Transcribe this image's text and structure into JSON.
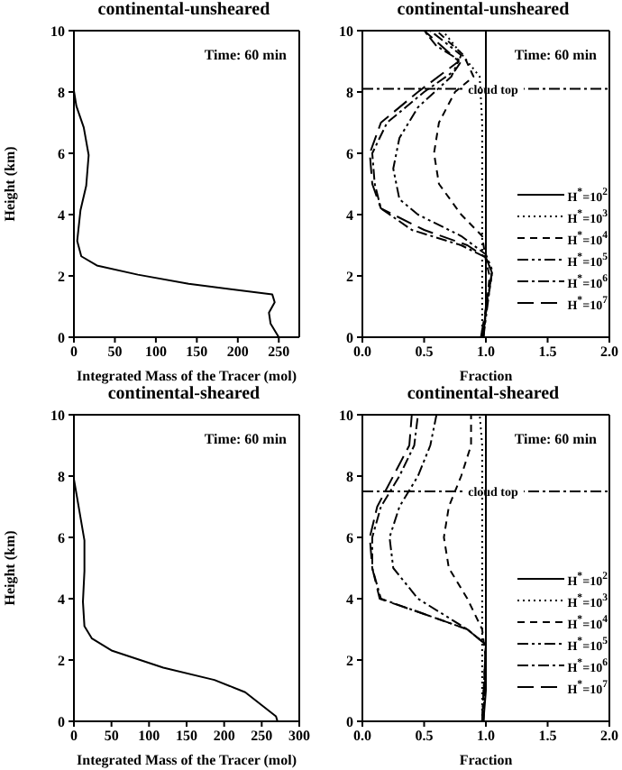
{
  "chart_data": [
    {
      "type": "line",
      "title": "continental-unsheared",
      "xlabel": "Integrated Mass of the Tracer (mol)",
      "ylabel": "Height (km)",
      "annotations": [
        "Time: 60 min"
      ],
      "xlim": [
        0,
        275
      ],
      "xticks": [
        0,
        50,
        100,
        150,
        200,
        250
      ],
      "ylim": [
        0,
        10
      ],
      "yticks": [
        0,
        2,
        4,
        6,
        8,
        10
      ],
      "line_style": "solid",
      "series": [
        {
          "color": "#000000",
          "x": [
            250,
            240,
            238,
            245,
            242,
            140,
            78,
            28,
            9,
            4,
            8,
            15,
            18,
            12,
            3,
            0
          ],
          "values": [
            0,
            0.44,
            0.8,
            1.14,
            1.4,
            1.74,
            2.04,
            2.34,
            2.64,
            3.14,
            4.14,
            4.94,
            5.94,
            6.84,
            7.54,
            8.04
          ]
        }
      ]
    },
    {
      "type": "line",
      "title": "continental-unsheared",
      "xlabel": "Fraction",
      "annotations": [
        "Time: 60 min"
      ],
      "xlim": [
        0,
        2
      ],
      "xticks": [
        {
          "value": 0,
          "label": "0.0"
        },
        {
          "value": 0.5,
          "label": "0.5"
        },
        {
          "value": 1,
          "label": "1.0"
        },
        {
          "value": 1.5,
          "label": "1.5"
        },
        {
          "value": 2,
          "label": "2.0"
        }
      ],
      "ylim": [
        0,
        10
      ],
      "yticks": [
        0,
        2,
        4,
        6,
        8,
        10
      ],
      "legend": "right",
      "ref_lines": [
        {
          "axis": "y",
          "value": 8.1,
          "label": "cloud top",
          "line_style": "dashdot"
        }
      ],
      "series": [
        {
          "name": "H$^{*}$=10$^{2}$",
          "color": "#000000",
          "line_style": "solid",
          "x": [
            0.98,
            1,
            1,
            1,
            1
          ],
          "values": [
            0,
            1,
            2,
            5,
            10
          ]
        },
        {
          "name": "H$^{*}$=10$^{3}$",
          "color": "#000000",
          "line_style": "dotted",
          "x": [
            0.97,
            0.97,
            0.97,
            0.95,
            0.85,
            0.65
          ],
          "values": [
            0,
            3,
            7,
            8.5,
            9,
            10
          ]
        },
        {
          "name": "H$^{*}$=10$^{4}$",
          "color": "#000000",
          "line_style": "dashed",
          "x": [
            0.98,
            1.03,
            1,
            0.97,
            0.8,
            0.62,
            0.58,
            0.62,
            0.75,
            0.9,
            0.82,
            0.6
          ],
          "values": [
            0,
            2,
            2.5,
            3.3,
            4,
            5,
            6,
            7,
            8,
            8.5,
            9.2,
            10
          ]
        },
        {
          "name": "H$^{*}$=10$^{5}$",
          "color": "#000000",
          "line_style": "dashdotdot",
          "x": [
            0.98,
            1.05,
            1,
            0.8,
            0.45,
            0.3,
            0.25,
            0.3,
            0.45,
            0.72,
            0.8,
            0.55
          ],
          "values": [
            0,
            2.2,
            2.7,
            3.3,
            4,
            4.5,
            5.5,
            6.5,
            7.5,
            8.5,
            9.2,
            10
          ]
        },
        {
          "name": "H$^{*}$=10$^{6}$",
          "color": "#000000",
          "line_style": "dashdot",
          "x": [
            0.97,
            1.05,
            1,
            0.8,
            0.4,
            0.15,
            0.1,
            0.08,
            0.2,
            0.5,
            0.75,
            0.8,
            0.6,
            0.5
          ],
          "values": [
            0,
            2.1,
            2.6,
            3,
            3.5,
            4.2,
            5,
            6,
            7,
            8,
            8.7,
            9,
            9.5,
            10
          ]
        },
        {
          "name": "H$^{*}$=10$^{7}$",
          "color": "#000000",
          "line_style": "longdash",
          "x": [
            0.96,
            1.05,
            1,
            0.85,
            0.5,
            0.15,
            0.08,
            0.06,
            0.15,
            0.45,
            0.78,
            0.5
          ],
          "values": [
            0,
            2.1,
            2.6,
            3,
            3.5,
            4.2,
            5,
            6,
            7,
            8,
            9,
            10
          ]
        }
      ]
    },
    {
      "type": "line",
      "title": "continental-sheared",
      "xlabel": "Integrated Mass of the Tracer (mol)",
      "ylabel": "Height (km)",
      "annotations": [
        "Time: 60 min"
      ],
      "xlim": [
        0,
        300
      ],
      "xticks": [
        0,
        50,
        100,
        150,
        200,
        250,
        300
      ],
      "ylim": [
        0,
        10
      ],
      "yticks": [
        0,
        2,
        4,
        6,
        8,
        10
      ],
      "line_style": "solid",
      "series": [
        {
          "color": "#000000",
          "x": [
            271,
            269,
            228,
            187,
            119,
            51,
            24,
            14,
            12,
            14,
            14,
            7,
            0
          ],
          "values": [
            0,
            0.16,
            0.95,
            1.35,
            1.75,
            2.3,
            2.7,
            3.1,
            3.9,
            4.9,
            5.9,
            6.9,
            7.9
          ]
        }
      ]
    },
    {
      "type": "line",
      "title": "continental-sheared",
      "xlabel": "Fraction",
      "annotations": [
        "Time: 60 min"
      ],
      "xlim": [
        0,
        2
      ],
      "xticks": [
        {
          "value": 0,
          "label": "0.0"
        },
        {
          "value": 0.5,
          "label": "0.5"
        },
        {
          "value": 1,
          "label": "1.0"
        },
        {
          "value": 1.5,
          "label": "1.5"
        },
        {
          "value": 2,
          "label": "2.0"
        }
      ],
      "ylim": [
        0,
        10
      ],
      "yticks": [
        0,
        2,
        4,
        6,
        8,
        10
      ],
      "legend": "right",
      "ref_lines": [
        {
          "axis": "y",
          "value": 7.5,
          "label": "cloud top",
          "line_style": "dashdot"
        }
      ],
      "series": [
        {
          "name": "H$^{*}$=10$^{2}$",
          "color": "#000000",
          "line_style": "solid",
          "x": [
            0.98,
            1,
            1,
            1,
            1
          ],
          "values": [
            0,
            1,
            2,
            5,
            10
          ]
        },
        {
          "name": "H$^{*}$=10$^{3}$",
          "color": "#000000",
          "line_style": "dotted",
          "x": [
            0.97,
            0.97,
            0.97,
            0.97,
            0.95
          ],
          "values": [
            0,
            3,
            7,
            9,
            10
          ]
        },
        {
          "name": "H$^{*}$=10$^{4}$",
          "color": "#000000",
          "line_style": "dashed",
          "x": [
            0.98,
            1,
            0.97,
            0.85,
            0.7,
            0.66,
            0.7,
            0.8,
            0.88,
            0.88
          ],
          "values": [
            0,
            2,
            3,
            4,
            5,
            6,
            7,
            8,
            9,
            10
          ]
        },
        {
          "name": "H$^{*}$=10$^{5}$",
          "color": "#000000",
          "line_style": "dashdotdot",
          "x": [
            0.98,
            1,
            0.85,
            0.45,
            0.25,
            0.22,
            0.3,
            0.45,
            0.55,
            0.6
          ],
          "values": [
            0,
            2.5,
            3,
            4,
            5,
            6,
            7,
            8,
            9,
            10
          ]
        },
        {
          "name": "H$^{*}$=10$^{6}$",
          "color": "#000000",
          "line_style": "dashdot",
          "x": [
            0.97,
            1,
            0.85,
            0.5,
            0.15,
            0.08,
            0.08,
            0.15,
            0.3,
            0.42,
            0.45
          ],
          "values": [
            0,
            2.5,
            3,
            3.5,
            4,
            5,
            6,
            7,
            8,
            9,
            10
          ]
        },
        {
          "name": "H$^{*}$=10$^{7}$",
          "color": "#000000",
          "line_style": "longdash",
          "x": [
            0.97,
            1,
            0.85,
            0.5,
            0.14,
            0.08,
            0.06,
            0.12,
            0.25,
            0.38,
            0.4
          ],
          "values": [
            0,
            2.5,
            3,
            3.5,
            4,
            5,
            6,
            7,
            8,
            9,
            10
          ]
        }
      ]
    }
  ]
}
